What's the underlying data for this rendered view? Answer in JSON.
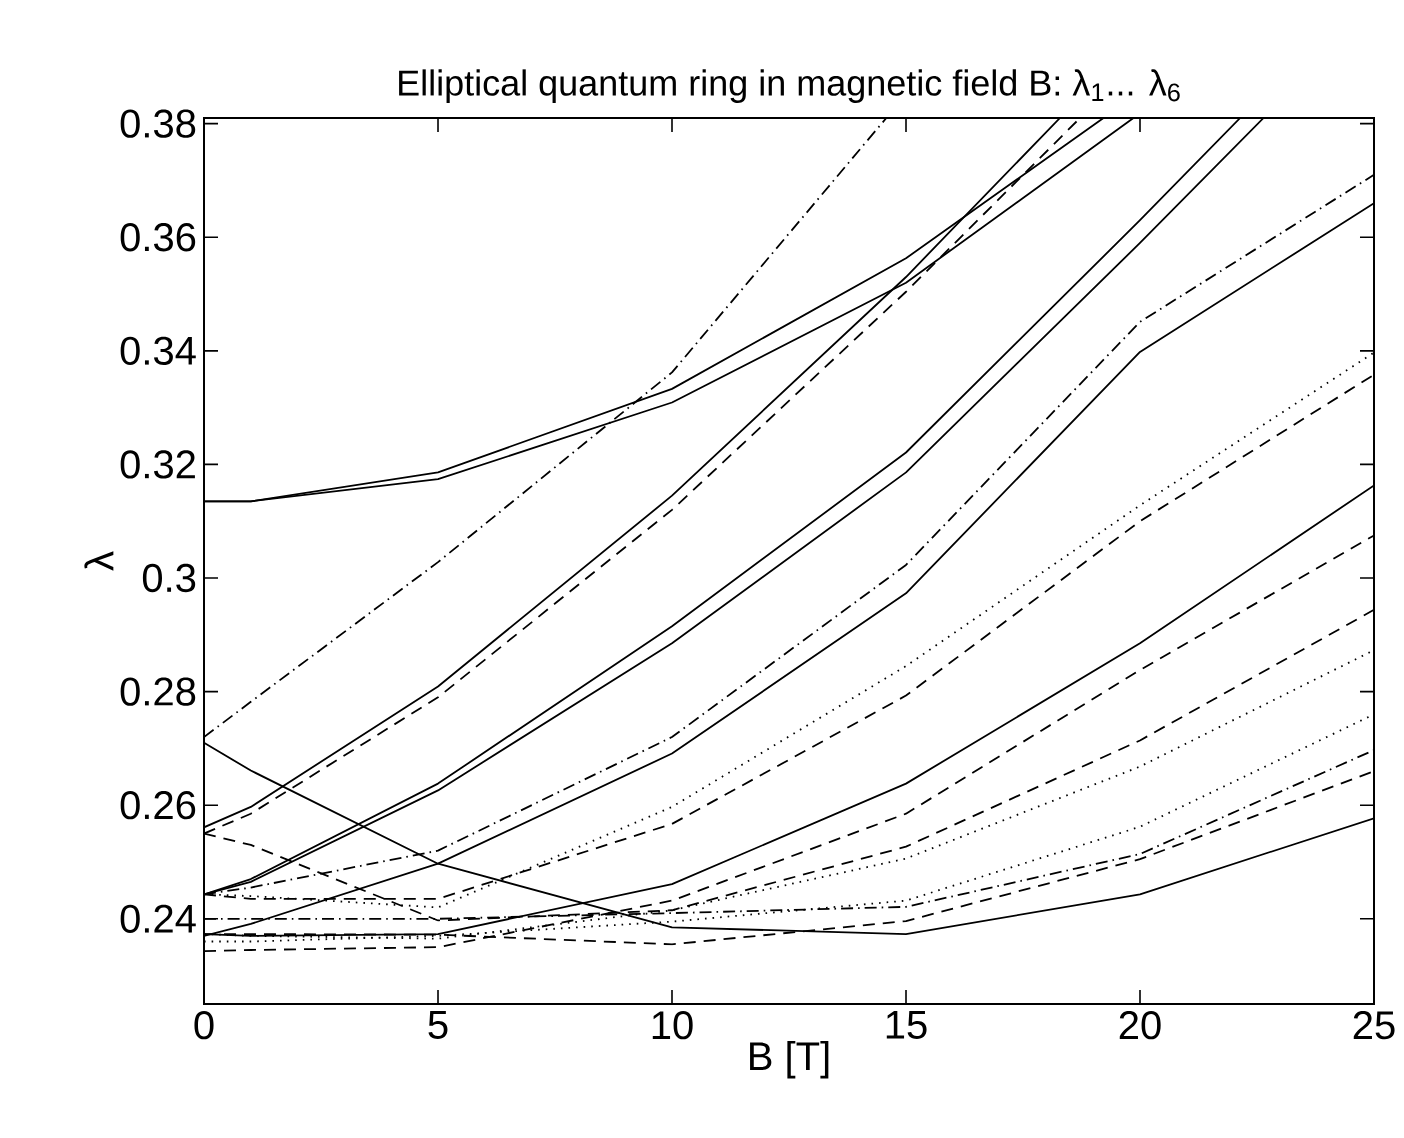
{
  "chart_data": {
    "type": "line",
    "title": "Elliptical quantum ring in magnetic field B:  λ$_{1}$... λ$_{6}$",
    "xlabel": "B [T]",
    "ylabel": "λ",
    "x": [
      0,
      1,
      5,
      10,
      15,
      20,
      25
    ],
    "xlim": [
      0,
      25
    ],
    "ylim": [
      0.225,
      0.381
    ],
    "xticks": [
      0,
      5,
      10,
      15,
      20,
      25
    ],
    "yticks": [
      0.24,
      0.26,
      0.28,
      0.3,
      0.32,
      0.34,
      0.36,
      0.38
    ],
    "grid": false,
    "marker": "none",
    "series": [
      {
        "color": "#000000",
        "line_style": "solid",
        "x": [
          0,
          1,
          5,
          10,
          15,
          19.22
        ],
        "values": [
          0.3135,
          0.3135,
          0.3186,
          0.3333,
          0.3563,
          0.381
        ]
      },
      {
        "color": "#000000",
        "line_style": "solid",
        "x": [
          0,
          1,
          5,
          10,
          15,
          19.86
        ],
        "values": [
          0.3135,
          0.3135,
          0.3174,
          0.3309,
          0.352,
          0.381
        ]
      },
      {
        "color": "#000000",
        "line_style": "dashdot",
        "x": [
          0,
          1,
          5,
          10,
          14.58
        ],
        "values": [
          0.272,
          0.2782,
          0.3028,
          0.3362,
          0.381
        ]
      },
      {
        "color": "#000000",
        "line_style": "solid",
        "values": [
          0.271,
          0.2661,
          0.2497,
          0.2385,
          0.2373,
          0.2443,
          0.2577
        ]
      },
      {
        "color": "#000000",
        "line_style": "solid",
        "x": [
          0,
          1,
          5,
          10,
          15,
          18.29
        ],
        "values": [
          0.2561,
          0.2597,
          0.2809,
          0.3145,
          0.353,
          0.381
        ]
      },
      {
        "color": "#000000",
        "line_style": "dashed",
        "x": [
          0,
          1,
          5,
          10,
          15,
          18.72
        ],
        "values": [
          0.255,
          0.2585,
          0.279,
          0.312,
          0.3504,
          0.381
        ]
      },
      {
        "color": "#000000",
        "line_style": "solid",
        "x": [
          0,
          1,
          5,
          10,
          15,
          20,
          22.14
        ],
        "values": [
          0.2443,
          0.247,
          0.2638,
          0.2915,
          0.3221,
          0.363,
          0.381
        ]
      },
      {
        "color": "#000000",
        "line_style": "solid",
        "x": [
          0,
          1,
          5,
          10,
          15,
          20,
          22.64
        ],
        "values": [
          0.2443,
          0.2465,
          0.2626,
          0.2885,
          0.3186,
          0.359,
          0.381
        ]
      },
      {
        "color": "#000000",
        "line_style": "dashdot",
        "values": [
          0.2443,
          0.2455,
          0.252,
          0.272,
          0.3023,
          0.3451,
          0.371
        ]
      },
      {
        "color": "#000000",
        "line_style": "solid",
        "values": [
          0.237,
          0.2391,
          0.2497,
          0.2691,
          0.2973,
          0.3398,
          0.366
        ]
      },
      {
        "color": "#000000",
        "line_style": "dotted",
        "values": [
          0.2443,
          0.244,
          0.242,
          0.2597,
          0.2845,
          0.3128,
          0.3397
        ]
      },
      {
        "color": "#000000",
        "line_style": "dashed",
        "values": [
          0.2443,
          0.2435,
          0.2435,
          0.2567,
          0.2793,
          0.31,
          0.3358
        ]
      },
      {
        "color": "#000000",
        "line_style": "solid",
        "values": [
          0.2373,
          0.237,
          0.2373,
          0.2461,
          0.2638,
          0.2885,
          0.3163
        ]
      },
      {
        "color": "#000000",
        "line_style": "dashed",
        "values": [
          0.2343,
          0.2345,
          0.235,
          0.2432,
          0.2585,
          0.2838,
          0.3075
        ]
      },
      {
        "color": "#000000",
        "line_style": "dashed",
        "values": [
          0.255,
          0.253,
          0.2397,
          0.2415,
          0.2527,
          0.2714,
          0.2944
        ]
      },
      {
        "color": "#000000",
        "line_style": "dotted",
        "values": [
          0.2373,
          0.237,
          0.2365,
          0.2415,
          0.2506,
          0.2668,
          0.2873
        ]
      },
      {
        "color": "#000000",
        "line_style": "dotted",
        "values": [
          0.236,
          0.236,
          0.237,
          0.2395,
          0.2432,
          0.2562,
          0.276
        ]
      },
      {
        "color": "#000000",
        "line_style": "dashdot",
        "values": [
          0.24,
          0.24,
          0.24,
          0.241,
          0.2421,
          0.2514,
          0.2697
        ]
      },
      {
        "color": "#000000",
        "line_style": "dashed",
        "values": [
          0.2373,
          0.2373,
          0.2372,
          0.2355,
          0.2396,
          0.2505,
          0.266
        ]
      }
    ]
  }
}
